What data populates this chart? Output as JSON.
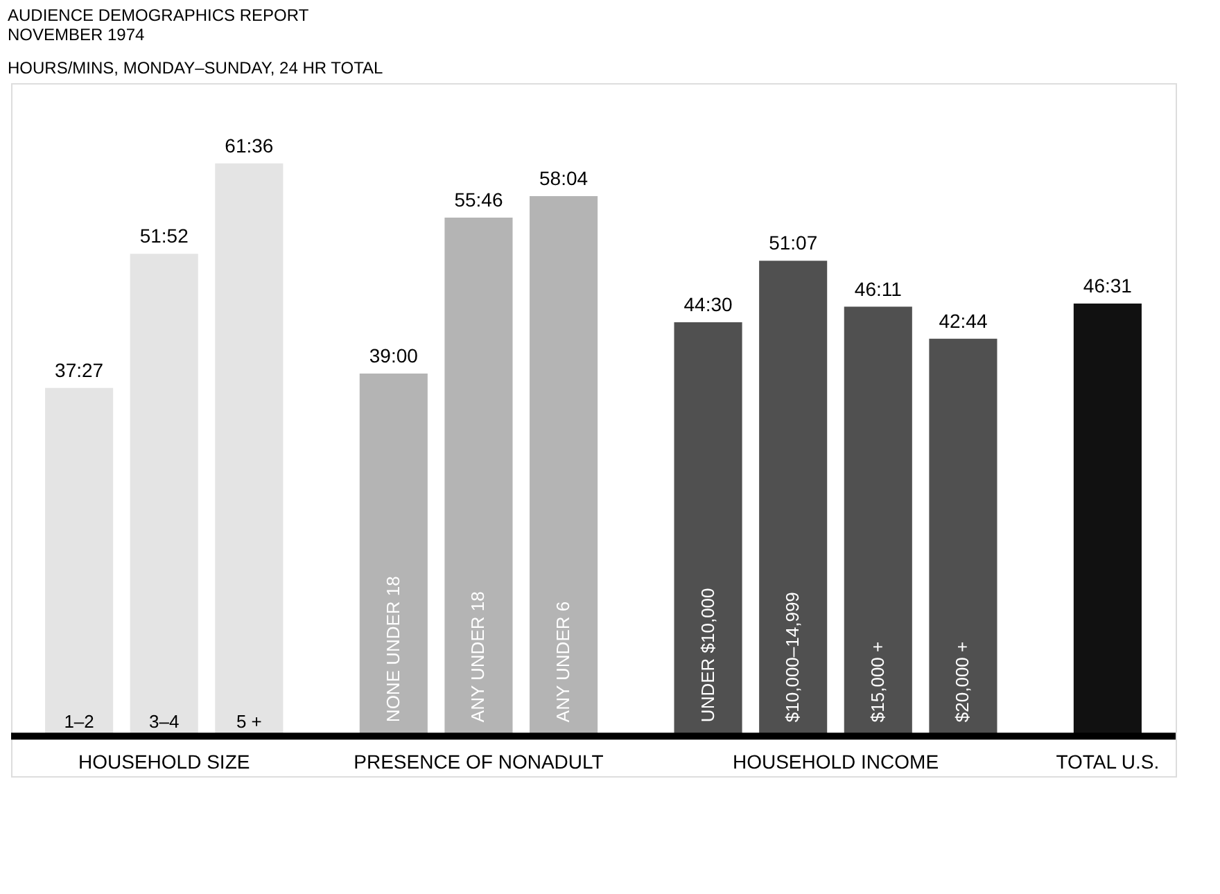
{
  "chart_data": {
    "type": "bar",
    "title": "AUDIENCE DEMOGRAPHICS REPORT\nNOVEMBER 1974",
    "subtitle": "HOURS/MINS, MONDAY–SUNDAY, 24 HR TOTAL",
    "legend": false,
    "categories": [
      "1–2",
      "3–4",
      "5 +",
      "NONE UNDER 18",
      "ANY UNDER 18",
      "ANY UNDER 6",
      "UNDER $10,000",
      "$10,000–14,999",
      "$15,000 +",
      "$20,000 +",
      null
    ],
    "series": [
      {
        "name": "HOUSEHOLD SIZE",
        "color": "#e4e4e4",
        "values": [
          37.45,
          51.87,
          61.6,
          null,
          null,
          null,
          null,
          null,
          null,
          null,
          null
        ],
        "value_labels": [
          "37:27",
          "51:52",
          "61:36",
          null,
          null,
          null,
          null,
          null,
          null,
          null,
          null
        ]
      },
      {
        "name": "PRESENCE OF NONADULT",
        "color": "#b4b4b4",
        "values": [
          null,
          null,
          null,
          39.0,
          55.77,
          58.07,
          null,
          null,
          null,
          null,
          null
        ],
        "value_labels": [
          null,
          null,
          null,
          "39:00",
          "55:46",
          "58:04",
          null,
          null,
          null,
          null,
          null
        ]
      },
      {
        "name": "HOUSEHOLD INCOME",
        "color": "#505050",
        "values": [
          null,
          null,
          null,
          null,
          null,
          null,
          44.5,
          51.12,
          46.18,
          42.73,
          null
        ],
        "value_labels": [
          null,
          null,
          null,
          null,
          null,
          null,
          "44:30",
          "51:07",
          "46:11",
          "42:44",
          null
        ]
      },
      {
        "name": "TOTAL U.S.",
        "color": "#111111",
        "values": [
          null,
          null,
          null,
          null,
          null,
          null,
          null,
          null,
          null,
          null,
          46.52
        ],
        "value_labels": [
          null,
          null,
          null,
          null,
          null,
          null,
          null,
          null,
          null,
          null,
          "46:31"
        ]
      }
    ]
  }
}
